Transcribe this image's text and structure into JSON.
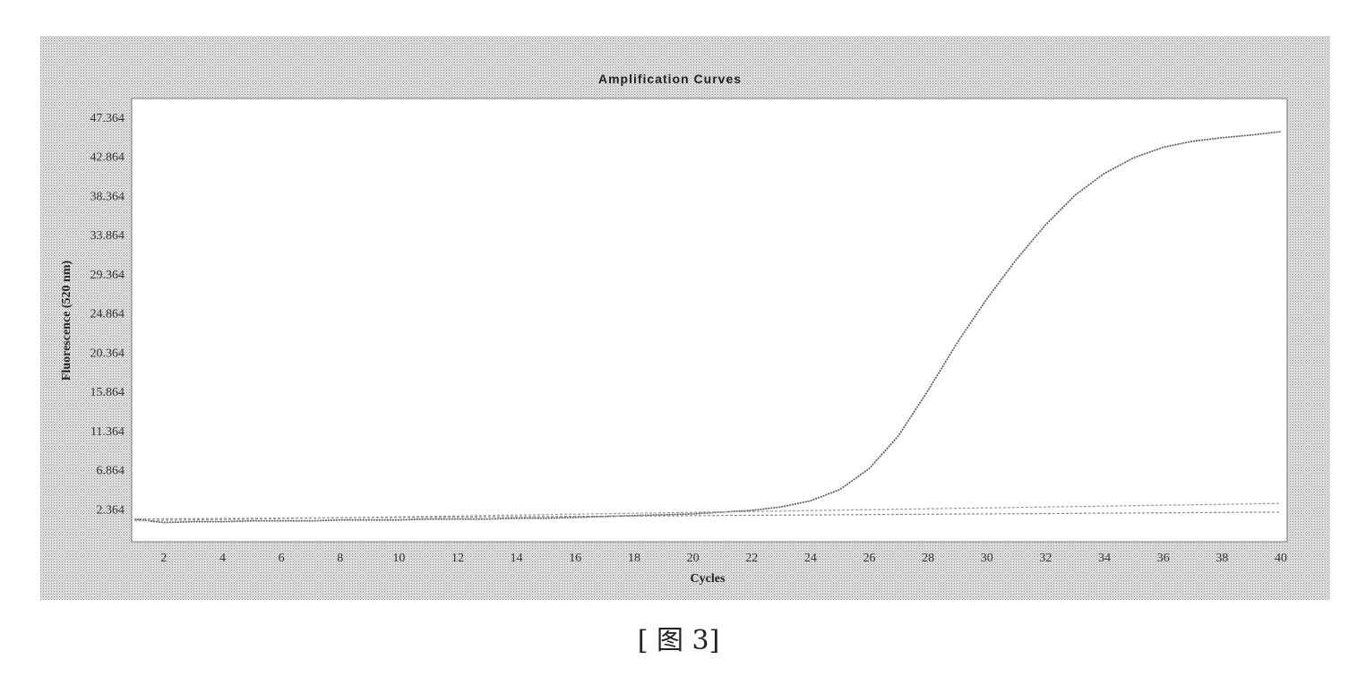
{
  "caption": "[ 图 3]",
  "chart_data": {
    "type": "line",
    "title": "Amplification Curves",
    "xlabel": "Cycles",
    "ylabel": "Fluorescence (520 nm)",
    "x_ticks": [
      "2",
      "4",
      "6",
      "8",
      "10",
      "12",
      "14",
      "16",
      "18",
      "20",
      "22",
      "24",
      "26",
      "28",
      "30",
      "32",
      "34",
      "36",
      "38",
      "40"
    ],
    "y_ticks": [
      "2.364",
      "6.864",
      "11.364",
      "15.864",
      "20.364",
      "24.864",
      "29.364",
      "33.864",
      "38.364",
      "42.864",
      "47.364"
    ],
    "xlim": [
      1,
      40
    ],
    "ylim": [
      -1.4,
      49.5
    ],
    "grid": false,
    "series": [
      {
        "x": [
          1,
          2,
          3,
          4,
          5,
          6,
          7,
          8,
          9,
          10,
          11,
          12,
          13,
          14,
          15,
          16,
          17,
          18,
          19,
          20,
          21,
          22,
          23,
          24,
          25,
          26,
          27,
          28,
          29,
          30,
          31,
          32,
          33,
          34,
          35,
          36,
          37,
          38,
          39,
          40
        ],
        "y": [
          1.2,
          0.8,
          0.9,
          0.9,
          1.0,
          1.0,
          1.0,
          1.1,
          1.1,
          1.1,
          1.2,
          1.2,
          1.2,
          1.3,
          1.3,
          1.4,
          1.5,
          1.6,
          1.7,
          1.8,
          2.0,
          2.2,
          2.6,
          3.3,
          4.6,
          7.0,
          10.8,
          16.0,
          21.5,
          26.5,
          31.0,
          35.0,
          38.4,
          40.9,
          42.7,
          43.9,
          44.6,
          45.0,
          45.3,
          45.7
        ],
        "color": "#555555"
      },
      {
        "x": [
          1,
          40
        ],
        "y": [
          1.2,
          2.0
        ],
        "color": "#888888"
      },
      {
        "x": [
          1,
          40
        ],
        "y": [
          1.0,
          3.0
        ],
        "color": "#999999"
      }
    ]
  },
  "colors": {
    "frame": "#cfcfcf",
    "plot_bg": "#ffffff",
    "curve": "#555555"
  }
}
